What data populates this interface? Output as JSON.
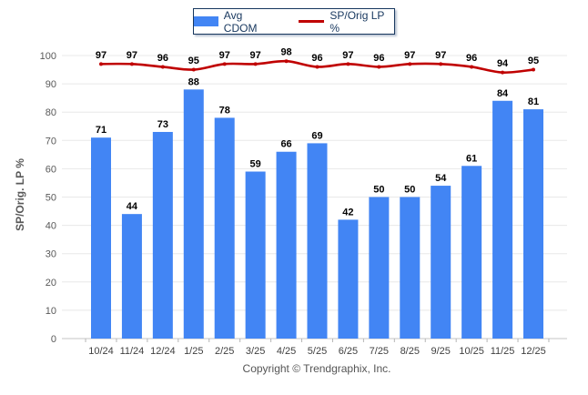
{
  "legend": {
    "series": [
      {
        "label": "Avg CDOM",
        "type": "bar",
        "color": "#4285f4"
      },
      {
        "label": "SP/Orig LP %",
        "type": "line",
        "color": "#c00000"
      }
    ]
  },
  "chart_data": {
    "type": "bar",
    "categories": [
      "10/24",
      "11/24",
      "12/24",
      "1/25",
      "2/25",
      "3/25",
      "4/25",
      "5/25",
      "6/25",
      "7/25",
      "8/25",
      "9/25",
      "10/25",
      "11/25",
      "12/25"
    ],
    "series": [
      {
        "name": "Avg CDOM",
        "type": "bar",
        "values": [
          71,
          44,
          73,
          88,
          78,
          59,
          66,
          69,
          42,
          50,
          50,
          54,
          61,
          84,
          81
        ]
      },
      {
        "name": "SP/Orig LP %",
        "type": "line",
        "values": [
          97,
          97,
          96,
          95,
          97,
          97,
          98,
          96,
          97,
          96,
          97,
          97,
          96,
          94,
          95
        ]
      }
    ],
    "title": "",
    "xlabel": "",
    "ylabel": "SP/Orig. LP %",
    "ylim": [
      0,
      100
    ],
    "ytick_step": 10,
    "grid": "horizontal",
    "legend_position": "top-center",
    "data_labels": true
  },
  "footer": {
    "copyright": "Copyright © Trendgraphix, Inc."
  },
  "colors": {
    "bar": "#4285f4",
    "line": "#c00000",
    "grid": "#e8e8e8",
    "axis_line": "#c6c6c6",
    "tick": "#b5b5b5",
    "tick_label": "#595959",
    "x_label": "#404040",
    "data_label": "#000000",
    "legend_border": "#17375e",
    "legend_text": "#17375e",
    "axis_title": "#595959",
    "copyright": "#555555"
  }
}
